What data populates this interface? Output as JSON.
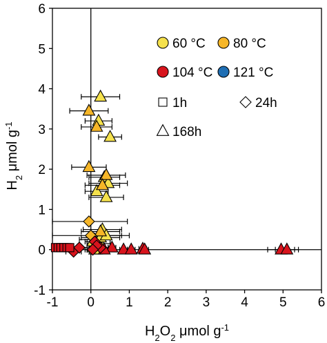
{
  "chart_data": {
    "type": "scatter",
    "xlabel": {
      "base": "H",
      "sub": "2",
      "mid": "O",
      "sub2": "2",
      "rest": " μmol g",
      "sup": "-1"
    },
    "ylabel": {
      "base": "H",
      "sub": "2",
      "rest": " μmol g",
      "sup": "-1"
    },
    "xlim": [
      -1,
      6
    ],
    "ylim": [
      -1,
      6
    ],
    "xticks": [
      "-1",
      "0",
      "1",
      "2",
      "3",
      "4",
      "5",
      "6"
    ],
    "yticks": [
      "-1",
      "0",
      "1",
      "2",
      "3",
      "4",
      "5",
      "6"
    ],
    "grid": false,
    "legend_position": "top-right",
    "colors": {
      "60 °C": "#f5e14c",
      "80 °C": "#f6b628",
      "104 °C": "#d8141d",
      "121 °C": "#1f6fb4"
    },
    "legend": {
      "temperatures": [
        "60 °C",
        "80 °C",
        "104 °C",
        "121 °C"
      ],
      "shapes": [
        {
          "label": "1h",
          "shape": "square"
        },
        {
          "label": "24h",
          "shape": "diamond"
        },
        {
          "label": "168h",
          "shape": "triangle"
        }
      ]
    },
    "series": [
      {
        "name": "60 °C",
        "shape": "triangle",
        "x": [
          0.25,
          0.2,
          0.5,
          0.15,
          0.35,
          0.45,
          0.4,
          0.3,
          0.1,
          0.2,
          0.3,
          0.05,
          0.25,
          0.15,
          0.4,
          0.1,
          0.05
        ],
        "y": [
          3.8,
          3.2,
          2.8,
          1.45,
          1.8,
          1.65,
          1.3,
          0.5,
          0.25,
          0.15,
          0.05,
          0.05,
          0.3,
          0.0,
          0.35,
          0.0,
          0.2
        ],
        "xerr": [
          0.5,
          0.35,
          0.3,
          0.3,
          0.4,
          0.5,
          0.45,
          0.5,
          0.4,
          0.3,
          0.3,
          0.3,
          0.5,
          0.2,
          0.4,
          0.2,
          0.2
        ]
      },
      {
        "name": "80 °C",
        "shape": "triangle",
        "x": [
          -0.05,
          0.15,
          -0.05,
          0.4,
          0.3,
          0.25
        ],
        "y": [
          3.45,
          3.05,
          2.05,
          1.85,
          1.6,
          0.45
        ],
        "xerr": [
          0.5,
          0.4,
          0.45,
          0.5,
          0.45,
          0.5
        ]
      },
      {
        "name": "80 °C",
        "shape": "diamond",
        "x": [
          -0.05,
          0.0
        ],
        "y": [
          0.7,
          0.35
        ],
        "xerr": [
          1.0,
          1.0
        ]
      },
      {
        "name": "104 °C",
        "shape": "triangle",
        "x": [
          0.85,
          1.05,
          1.35,
          1.4,
          4.95,
          5.1,
          0.55,
          0.35
        ],
        "y": [
          0.0,
          0.0,
          0.02,
          0.0,
          0.0,
          0.0,
          0.05,
          0.0
        ],
        "xerr": [
          0.1,
          0.1,
          0.1,
          0.1,
          0.35,
          0.3,
          0.1,
          0.1
        ]
      },
      {
        "name": "104 °C",
        "shape": "diamond",
        "x": [
          -0.45,
          -0.3,
          0.1,
          0.25,
          0.15,
          0.05
        ],
        "y": [
          -0.05,
          0.05,
          0.2,
          0.05,
          0.1,
          0.0
        ],
        "xerr": [
          0.2,
          0.2,
          0.2,
          0.2,
          0.2,
          0.2
        ]
      },
      {
        "name": "104 °C",
        "shape": "square",
        "x": [
          -0.92,
          -0.85,
          -0.78,
          -0.7,
          -0.62,
          -0.55
        ],
        "y": [
          0.05,
          0.05,
          0.05,
          0.05,
          0.05,
          0.05
        ],
        "xerr": [
          0.05,
          0.05,
          0.05,
          0.05,
          0.05,
          0.05
        ]
      }
    ],
    "axis_zero_lines": true
  }
}
